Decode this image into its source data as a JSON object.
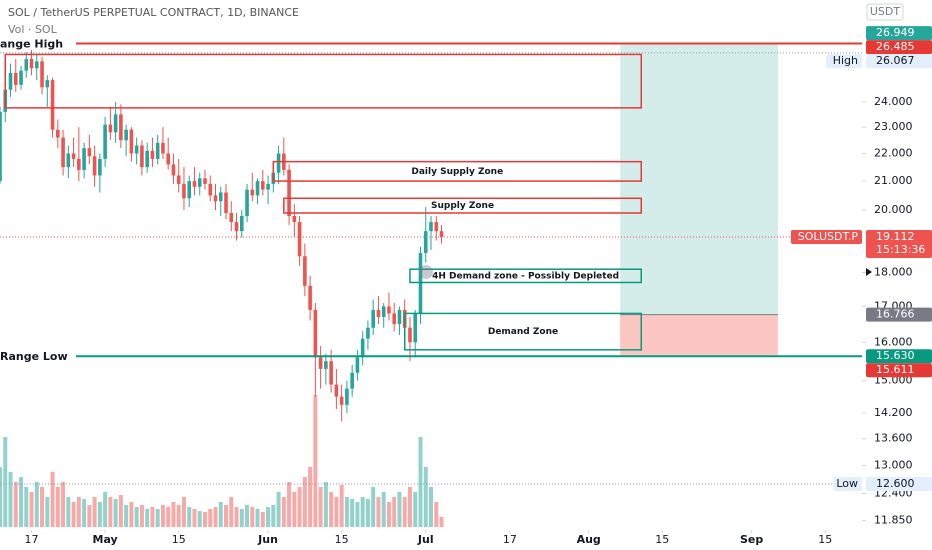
{
  "chart_data": {
    "type": "candlestick",
    "title": "SOL / TetherUS PERPETUAL CONTRACT, 1D, BINANCE",
    "subtitle": "Vol · SOL",
    "currency": "USDT",
    "log_scale": true,
    "ylim": [
      11.66,
      28.5
    ],
    "xlim": [
      "04-11",
      "09-22"
    ],
    "yticks": [
      {
        "value": 24,
        "label": "24.000"
      },
      {
        "value": 23,
        "label": "23.000"
      },
      {
        "value": 22,
        "label": "22.000"
      },
      {
        "value": 21,
        "label": "21.000"
      },
      {
        "value": 20,
        "label": "20.000"
      },
      {
        "value": 18,
        "label": "18.000"
      },
      {
        "value": 17,
        "label": "17.000"
      },
      {
        "value": 16,
        "label": "16.000"
      },
      {
        "value": 15,
        "label": "15.000"
      },
      {
        "value": 14.2,
        "label": "14.200"
      },
      {
        "value": 13.6,
        "label": "13.600"
      },
      {
        "value": 13,
        "label": "13.000"
      },
      {
        "value": 12.4,
        "label": "12.400"
      },
      {
        "value": 11.85,
        "label": "11.850"
      }
    ],
    "xticks": [
      {
        "value": "04-17",
        "label": "17"
      },
      {
        "value": "05-01",
        "label": "May"
      },
      {
        "value": "05-15",
        "label": "15"
      },
      {
        "value": "06-01",
        "label": "Jun"
      },
      {
        "value": "06-15",
        "label": "15"
      },
      {
        "value": "07-01",
        "label": "Jul"
      },
      {
        "value": "07-17",
        "label": "17"
      },
      {
        "value": "08-01",
        "label": "Aug"
      },
      {
        "value": "08-15",
        "label": "15"
      },
      {
        "value": "09-01",
        "label": "Sep"
      },
      {
        "value": "09-15",
        "label": "15"
      }
    ],
    "up_color": "#26a69a",
    "down_color": "#ef5350",
    "dates": [
      "04-11",
      "04-12",
      "04-13",
      "04-14",
      "04-15",
      "04-16",
      "04-17",
      "04-18",
      "04-19",
      "04-20",
      "04-21",
      "04-22",
      "04-23",
      "04-24",
      "04-25",
      "04-26",
      "04-27",
      "04-28",
      "04-29",
      "04-30",
      "05-01",
      "05-02",
      "05-03",
      "05-04",
      "05-05",
      "05-06",
      "05-07",
      "05-08",
      "05-09",
      "05-10",
      "05-11",
      "05-12",
      "05-13",
      "05-14",
      "05-15",
      "05-16",
      "05-17",
      "05-18",
      "05-19",
      "05-20",
      "05-21",
      "05-22",
      "05-23",
      "05-24",
      "05-25",
      "05-26",
      "05-27",
      "05-28",
      "05-29",
      "05-30",
      "05-31",
      "06-01",
      "06-02",
      "06-03",
      "06-04",
      "06-05",
      "06-06",
      "06-07",
      "06-08",
      "06-09",
      "06-10",
      "06-11",
      "06-12",
      "06-13",
      "06-14",
      "06-15",
      "06-16",
      "06-17",
      "06-18",
      "06-19",
      "06-20",
      "06-21",
      "06-22",
      "06-23",
      "06-24",
      "06-25",
      "06-26",
      "06-27",
      "06-28",
      "06-29",
      "06-30",
      "07-01",
      "07-02",
      "07-03",
      "07-04"
    ],
    "candles": [
      [
        21.0,
        23.8,
        20.9,
        23.6
      ],
      [
        23.6,
        24.9,
        23.2,
        24.5
      ],
      [
        24.5,
        25.6,
        24.2,
        25.2
      ],
      [
        25.2,
        25.8,
        24.4,
        24.7
      ],
      [
        24.7,
        25.5,
        24.5,
        25.3
      ],
      [
        25.3,
        26.1,
        25.0,
        25.8
      ],
      [
        25.8,
        26.2,
        25.1,
        25.4
      ],
      [
        25.4,
        26.0,
        24.9,
        25.7
      ],
      [
        25.7,
        25.9,
        24.3,
        24.6
      ],
      [
        24.6,
        25.1,
        23.8,
        24.9
      ],
      [
        24.9,
        25.0,
        22.6,
        22.9
      ],
      [
        22.9,
        23.3,
        22.2,
        22.6
      ],
      [
        22.6,
        22.9,
        21.2,
        21.5
      ],
      [
        21.5,
        22.3,
        21.1,
        22.0
      ],
      [
        22.0,
        22.6,
        21.5,
        21.8
      ],
      [
        21.8,
        23.0,
        21.0,
        21.4
      ],
      [
        21.4,
        22.4,
        21.1,
        22.2
      ],
      [
        22.2,
        22.7,
        21.6,
        21.9
      ],
      [
        21.9,
        22.3,
        20.8,
        21.2
      ],
      [
        21.2,
        22.0,
        20.6,
        21.8
      ],
      [
        21.8,
        23.4,
        21.5,
        23.1
      ],
      [
        23.1,
        23.8,
        22.5,
        22.8
      ],
      [
        22.8,
        24.0,
        22.4,
        23.5
      ],
      [
        23.5,
        23.9,
        22.2,
        22.5
      ],
      [
        22.5,
        23.1,
        21.9,
        22.9
      ],
      [
        22.9,
        23.0,
        21.7,
        22.0
      ],
      [
        22.0,
        22.6,
        21.6,
        22.3
      ],
      [
        22.3,
        22.5,
        21.2,
        21.5
      ],
      [
        21.5,
        22.4,
        21.3,
        22.1
      ],
      [
        22.1,
        22.6,
        21.5,
        21.8
      ],
      [
        21.8,
        22.7,
        21.6,
        22.4
      ],
      [
        22.4,
        23.0,
        21.8,
        22.0
      ],
      [
        22.0,
        22.6,
        21.4,
        21.6
      ],
      [
        21.6,
        22.0,
        20.9,
        21.2
      ],
      [
        21.2,
        21.8,
        20.6,
        20.9
      ],
      [
        20.9,
        21.5,
        20.0,
        20.4
      ],
      [
        20.4,
        21.2,
        20.1,
        21.0
      ],
      [
        21.0,
        21.5,
        20.5,
        20.8
      ],
      [
        20.8,
        21.3,
        20.5,
        21.1
      ],
      [
        21.1,
        21.4,
        20.7,
        20.9
      ],
      [
        20.9,
        21.2,
        20.3,
        20.5
      ],
      [
        20.5,
        20.9,
        20.0,
        20.3
      ],
      [
        20.3,
        20.8,
        19.8,
        20.6
      ],
      [
        20.6,
        20.9,
        19.7,
        19.9
      ],
      [
        19.9,
        20.3,
        19.3,
        19.6
      ],
      [
        19.6,
        19.9,
        19.0,
        19.3
      ],
      [
        19.3,
        20.0,
        19.1,
        19.8
      ],
      [
        19.8,
        20.9,
        19.6,
        20.7
      ],
      [
        20.7,
        21.3,
        20.3,
        20.5
      ],
      [
        20.5,
        21.1,
        20.2,
        21.0
      ],
      [
        21.0,
        21.4,
        20.5,
        20.7
      ],
      [
        20.7,
        21.2,
        20.2,
        20.9
      ],
      [
        20.9,
        21.5,
        20.6,
        21.3
      ],
      [
        21.3,
        22.3,
        20.9,
        22.0
      ],
      [
        22.0,
        22.6,
        21.2,
        21.4
      ],
      [
        21.4,
        21.6,
        19.5,
        19.8
      ],
      [
        19.8,
        20.2,
        19.1,
        19.6
      ],
      [
        19.6,
        19.8,
        18.2,
        18.5
      ],
      [
        18.5,
        18.9,
        17.3,
        17.6
      ],
      [
        17.6,
        17.9,
        16.6,
        16.9
      ],
      [
        16.9,
        17.1,
        14.6,
        15.6
      ],
      [
        15.6,
        15.9,
        14.8,
        15.3
      ],
      [
        15.3,
        15.7,
        14.9,
        15.5
      ],
      [
        15.5,
        15.8,
        14.7,
        14.9
      ],
      [
        14.9,
        15.3,
        14.3,
        14.6
      ],
      [
        14.6,
        14.9,
        14.0,
        14.4
      ],
      [
        14.4,
        15.0,
        14.2,
        14.8
      ],
      [
        14.8,
        15.4,
        14.6,
        15.2
      ],
      [
        15.2,
        15.8,
        15.0,
        15.6
      ],
      [
        15.6,
        16.3,
        15.4,
        16.1
      ],
      [
        16.1,
        16.6,
        15.8,
        16.4
      ],
      [
        16.4,
        17.2,
        16.2,
        16.9
      ],
      [
        16.9,
        17.3,
        16.5,
        16.7
      ],
      [
        16.7,
        17.1,
        16.4,
        17.0
      ],
      [
        17.0,
        17.4,
        16.6,
        16.8
      ],
      [
        16.8,
        17.1,
        16.3,
        16.5
      ],
      [
        16.5,
        17.0,
        16.2,
        16.9
      ],
      [
        16.9,
        17.2,
        16.3,
        16.4
      ],
      [
        16.4,
        16.7,
        15.5,
        16.0
      ],
      [
        16.0,
        16.9,
        15.6,
        16.8
      ],
      [
        16.8,
        18.8,
        16.5,
        18.6
      ],
      [
        18.6,
        20.1,
        18.3,
        19.3
      ],
      [
        19.3,
        19.8,
        18.7,
        19.6
      ],
      [
        19.6,
        19.8,
        19.0,
        19.3
      ],
      [
        19.3,
        19.5,
        18.9,
        19.112
      ]
    ],
    "volume": [
      60,
      90,
      55,
      45,
      50,
      40,
      35,
      45,
      40,
      30,
      55,
      40,
      45,
      30,
      25,
      30,
      28,
      22,
      30,
      25,
      35,
      30,
      28,
      32,
      22,
      25,
      20,
      22,
      18,
      20,
      18,
      22,
      20,
      25,
      22,
      30,
      20,
      18,
      16,
      15,
      18,
      20,
      25,
      22,
      30,
      20,
      18,
      22,
      20,
      18,
      15,
      20,
      22,
      35,
      30,
      45,
      35,
      40,
      50,
      60,
      132,
      40,
      45,
      35,
      30,
      42,
      30,
      28,
      25,
      30,
      28,
      40,
      30,
      35,
      25,
      30,
      35,
      30,
      40,
      35,
      90,
      60,
      40,
      25,
      10
    ],
    "levels": [
      {
        "label": "ange High",
        "value": 26.485,
        "color": "#e53935"
      },
      {
        "label": "Range Low",
        "value": 15.63,
        "color": "#089981"
      }
    ],
    "zones": [
      {
        "top": 26.0,
        "bottom": 23.76,
        "start": "04-12",
        "end": "08-11",
        "color": "#e53935"
      },
      {
        "label": "Daily Supply Zone",
        "top": 21.7,
        "bottom": 21.0,
        "start": "06-02",
        "end": "08-11",
        "color": "#e53935"
      },
      {
        "label": "Supply Zone",
        "top": 20.4,
        "bottom": 19.9,
        "start": "06-04",
        "end": "08-11",
        "color": "#e53935"
      },
      {
        "label": "4H Demand zone - Possibly Depleted",
        "top": 18.1,
        "bottom": 17.7,
        "start": "06-28",
        "end": "08-11",
        "color": "#089981"
      },
      {
        "label": "Demand Zone",
        "top": 16.8,
        "bottom": 15.8,
        "start": "06-27",
        "end": "08-11",
        "color": "#089981"
      }
    ],
    "position": {
      "target": 26.485,
      "entry": 16.766,
      "stop": 15.611,
      "start": "08-07",
      "end": "09-06"
    },
    "dotted_lines": [
      {
        "value": 26.067,
        "color": "#9598a1"
      },
      {
        "value": 19.112,
        "color": "#ef5350"
      },
      {
        "value": 12.6,
        "color": "#9598a1"
      }
    ],
    "price_labels": [
      {
        "value": 26.949,
        "label": "26.949",
        "color": "#26a69a"
      },
      {
        "value": 26.485,
        "label": "26.485",
        "color": "#e53935"
      },
      {
        "value": 26.067,
        "label": "26.067",
        "name": "High",
        "color": "#e3effd"
      },
      {
        "value": 19.112,
        "label": "19.112",
        "name": "SOLUSDT.P",
        "timer": "15:13:36",
        "color": "#ef5350"
      },
      {
        "value": 16.766,
        "label": "16.766",
        "color": "#787b86"
      },
      {
        "value": 15.63,
        "label": "15.630",
        "color": "#089981"
      },
      {
        "value": 15.611,
        "label": "15.611",
        "color": "#e53935"
      },
      {
        "value": 12.6,
        "label": "12.600",
        "name": "Low",
        "color": "#e3effd"
      }
    ]
  }
}
